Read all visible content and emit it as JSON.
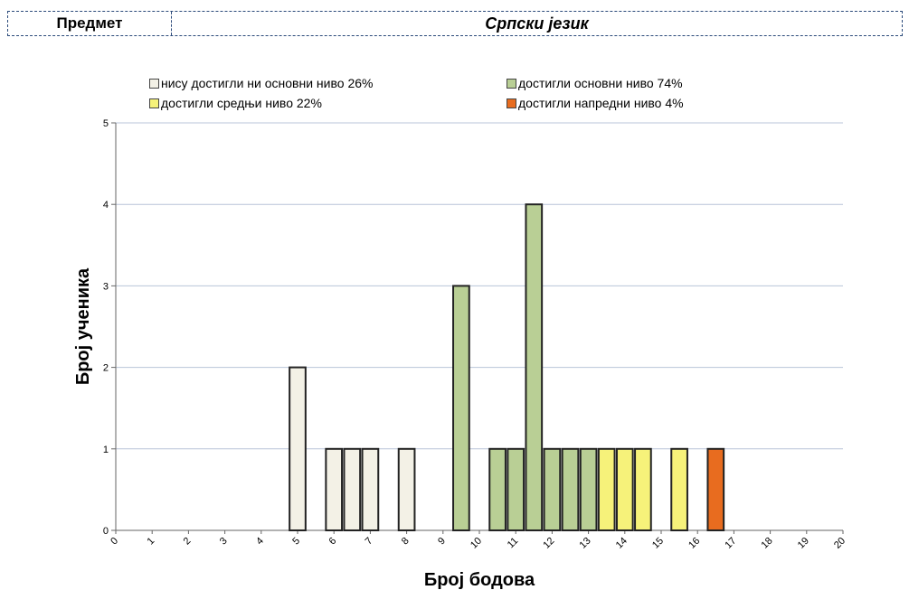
{
  "header": {
    "subject_label": "Предмет",
    "subject_value": "Српски језик"
  },
  "legend": [
    {
      "label": "нису достигли ни основни ниво 26%",
      "color": "#f3f1e6"
    },
    {
      "label": "достигли основни ниво 74%",
      "color": "#b9cf95"
    },
    {
      "label": "достигли средњи ниво 22%",
      "color": "#f6f27a"
    },
    {
      "label": "достигли напредни ниво 4%",
      "color": "#e86c1f"
    }
  ],
  "chart_data": {
    "type": "bar",
    "xlabel": "Број бодова",
    "ylabel": "Број ученика",
    "x_ticks": [
      "0",
      "1",
      "2",
      "3",
      "4",
      "5",
      "6",
      "7",
      "8",
      "9",
      "10",
      "11",
      "12",
      "13",
      "14",
      "15",
      "16",
      "17",
      "18",
      "19",
      "20"
    ],
    "y_ticks": [
      "0",
      "1",
      "2",
      "3",
      "4",
      "5"
    ],
    "xlim": [
      0,
      20
    ],
    "ylim": [
      0,
      5
    ],
    "grid": "horizontal",
    "bars": [
      {
        "x": 5,
        "value": 2,
        "level": 0
      },
      {
        "x": 6,
        "value": 1,
        "level": 0
      },
      {
        "x": 6.5,
        "value": 1,
        "level": 0
      },
      {
        "x": 7,
        "value": 1,
        "level": 0
      },
      {
        "x": 8,
        "value": 1,
        "level": 0
      },
      {
        "x": 9.5,
        "value": 3,
        "level": 1
      },
      {
        "x": 10.5,
        "value": 1,
        "level": 1
      },
      {
        "x": 11,
        "value": 1,
        "level": 1
      },
      {
        "x": 11.5,
        "value": 4,
        "level": 1
      },
      {
        "x": 12,
        "value": 1,
        "level": 1
      },
      {
        "x": 12.5,
        "value": 1,
        "level": 1
      },
      {
        "x": 13,
        "value": 1,
        "level": 1
      },
      {
        "x": 13.5,
        "value": 1,
        "level": 2
      },
      {
        "x": 14,
        "value": 1,
        "level": 2
      },
      {
        "x": 14.5,
        "value": 1,
        "level": 2
      },
      {
        "x": 15.5,
        "value": 1,
        "level": 2
      },
      {
        "x": 16.5,
        "value": 1,
        "level": 3
      }
    ]
  }
}
